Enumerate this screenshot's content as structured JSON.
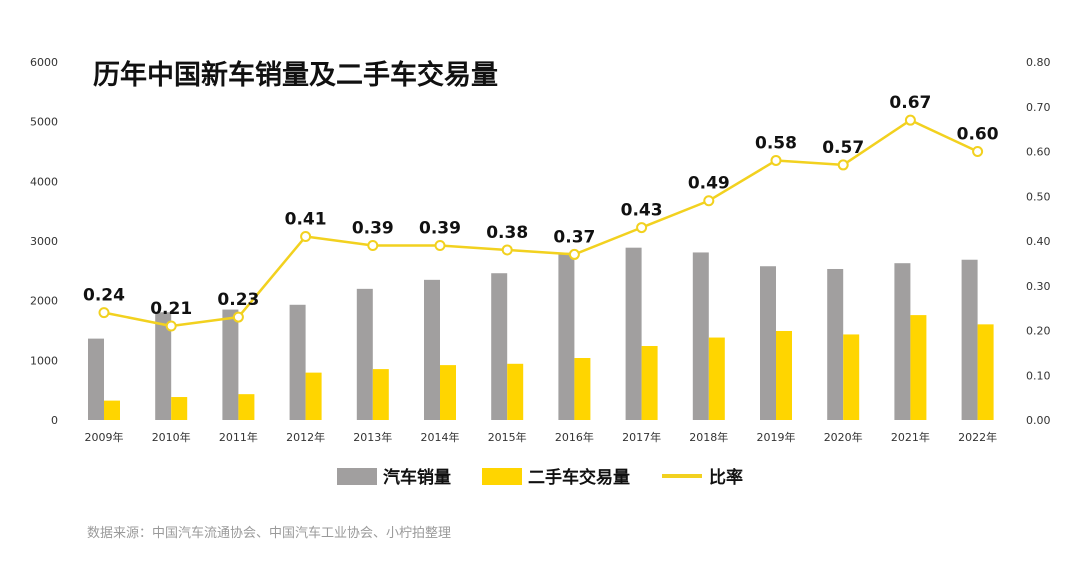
{
  "chart_data": {
    "type": "bar",
    "title": "历年中国新车销量及二手车交易量",
    "categories": [
      "2009年",
      "2010年",
      "2011年",
      "2012年",
      "2013年",
      "2014年",
      "2015年",
      "2016年",
      "2017年",
      "2018年",
      "2019年",
      "2020年",
      "2021年",
      "2022年"
    ],
    "series": [
      {
        "name": "汽车销量",
        "type": "bar",
        "axis": "left",
        "color": "#a19f9f",
        "values": [
          1364,
          1806,
          1851,
          1931,
          2198,
          2349,
          2460,
          2803,
          2888,
          2808,
          2577,
          2531,
          2628,
          2686
        ]
      },
      {
        "name": "二手车交易量",
        "type": "bar",
        "axis": "left",
        "color": "#ffd500",
        "values": [
          325,
          385,
          433,
          794,
          853,
          920,
          942,
          1039,
          1240,
          1382,
          1492,
          1434,
          1758,
          1603
        ]
      },
      {
        "name": "比率",
        "type": "line",
        "axis": "right",
        "color": "#f2d11f",
        "values": [
          0.24,
          0.21,
          0.23,
          0.41,
          0.39,
          0.39,
          0.38,
          0.37,
          0.43,
          0.49,
          0.58,
          0.57,
          0.67,
          0.6
        ],
        "labels": [
          "0.24",
          "0.21",
          "0.23",
          "0.41",
          "0.39",
          "0.39",
          "0.38",
          "0.37",
          "0.43",
          "0.49",
          "0.58",
          "0.57",
          "0.67",
          "0.60"
        ]
      }
    ],
    "y_left": {
      "ylim": [
        0,
        6000
      ],
      "ticks": [
        "0",
        "1000",
        "2000",
        "3000",
        "4000",
        "5000",
        "6000"
      ]
    },
    "y_right": {
      "ylim": [
        0,
        0.8
      ],
      "ticks": [
        "0.00",
        "0.10",
        "0.20",
        "0.30",
        "0.40",
        "0.50",
        "0.60",
        "0.70",
        "0.80"
      ]
    },
    "grid": false,
    "legend_position": "bottom"
  },
  "source_note": "数据来源：中国汽车流通协会、中国汽车工业协会、小柠拍整理"
}
